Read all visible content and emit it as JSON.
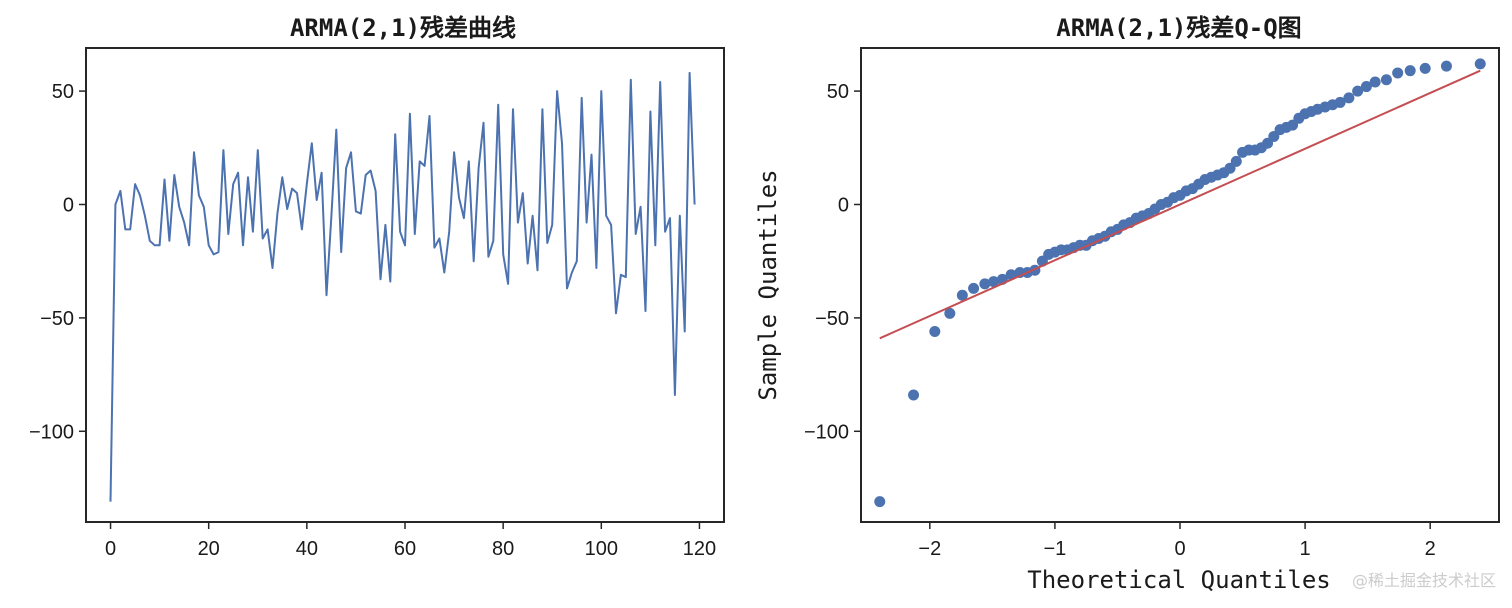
{
  "chart_data": [
    {
      "type": "line",
      "title": "ARMA(2,1)残差曲线",
      "xlabel": "",
      "ylabel": "",
      "xlim": [
        -5,
        125
      ],
      "ylim": [
        -140,
        69
      ],
      "xticks": [
        0,
        20,
        40,
        60,
        80,
        100,
        120
      ],
      "xtick_labels": [
        "0",
        "20",
        "40",
        "60",
        "80",
        "100",
        "120"
      ],
      "yticks": [
        50,
        0,
        -50,
        -100
      ],
      "ytick_labels": [
        "50",
        "0",
        "−50",
        "−100"
      ],
      "grid": false,
      "color": "#4c72b0",
      "series": [
        {
          "x": [
            0,
            1,
            2,
            3,
            4,
            5,
            6,
            7,
            8,
            9,
            10,
            11,
            12,
            13,
            14,
            15,
            16,
            17,
            18,
            19,
            20,
            21,
            22,
            23,
            24,
            25,
            26,
            27,
            28,
            29,
            30,
            31,
            32,
            33,
            34,
            35,
            36,
            37,
            38,
            39,
            40,
            41,
            42,
            43,
            44,
            45,
            46,
            47,
            48,
            49,
            50,
            51,
            52,
            53,
            54,
            55,
            56,
            57,
            58,
            59,
            60,
            61,
            62,
            63,
            64,
            65,
            66,
            67,
            68,
            69,
            70,
            71,
            72,
            73,
            74,
            75,
            76,
            77,
            78,
            79,
            80,
            81,
            82,
            83,
            84,
            85,
            86,
            87,
            88,
            89,
            90,
            91,
            92,
            93,
            94,
            95,
            96,
            97,
            98,
            99,
            100,
            101,
            102,
            103,
            104,
            105,
            106,
            107,
            108,
            109,
            110,
            111,
            112,
            113,
            114,
            115,
            116,
            117,
            118,
            119
          ],
          "y": [
            -131,
            0,
            6,
            -11,
            -11,
            9,
            4,
            -5,
            -16,
            -18,
            -18,
            11,
            -16,
            13,
            -1,
            -8,
            -18,
            23,
            4,
            -1,
            -18,
            -22,
            -21,
            24,
            -13,
            9,
            14,
            -18,
            12,
            -12,
            24,
            -15,
            -11,
            -28,
            -4,
            12,
            -2,
            7,
            5,
            -11,
            9,
            27,
            2,
            14,
            -40,
            -5,
            33,
            -21,
            16,
            23,
            -3,
            -4,
            13,
            15,
            6,
            -33,
            -9,
            -34,
            31,
            -12,
            -18,
            40,
            -13,
            19,
            17,
            39,
            -19,
            -15,
            -30,
            -12,
            23,
            3,
            -6,
            19,
            -25,
            16,
            36,
            -23,
            -16,
            44,
            -22,
            -35,
            42,
            -8,
            5,
            -26,
            -5,
            -29,
            42,
            -17,
            -9,
            50,
            27,
            -37,
            -30,
            -25,
            47,
            -8,
            22,
            -28,
            50,
            -5,
            -9,
            -48,
            -31,
            -32,
            55,
            -13,
            -1,
            -47,
            41,
            -18,
            54,
            -12,
            -6,
            -84,
            -5,
            -56,
            58,
            0
          ]
        }
      ]
    },
    {
      "type": "scatter",
      "title": "ARMA(2,1)残差Q-Q图",
      "xlabel": "Theoretical Quantiles",
      "ylabel": "Sample Quantiles",
      "xlim": [
        -2.55,
        2.55
      ],
      "ylim": [
        -140,
        69
      ],
      "xticks": [
        -2,
        -1,
        0,
        1,
        2
      ],
      "xtick_labels": [
        "−2",
        "−1",
        "0",
        "1",
        "2"
      ],
      "yticks": [
        50,
        0,
        -50,
        -100
      ],
      "ytick_labels": [
        "50",
        "0",
        "−50",
        "−100"
      ],
      "grid": false,
      "point_color": "#4c72b0",
      "line_color": "#c44e52",
      "reference_line": {
        "x": [
          -2.4,
          2.4
        ],
        "y": [
          -59,
          59
        ]
      },
      "points": {
        "x": [
          -2.4,
          -2.13,
          -1.96,
          -1.84,
          -1.74,
          -1.65,
          -1.56,
          -1.49,
          -1.42,
          -1.35,
          -1.28,
          -1.22,
          -1.16,
          -1.1,
          -1.05,
          -1.0,
          -0.95,
          -0.9,
          -0.85,
          -0.8,
          -0.75,
          -0.7,
          -0.65,
          -0.6,
          -0.55,
          -0.5,
          -0.45,
          -0.4,
          -0.35,
          -0.3,
          -0.25,
          -0.2,
          -0.15,
          -0.1,
          -0.05,
          0.0,
          0.05,
          0.1,
          0.15,
          0.2,
          0.25,
          0.3,
          0.35,
          0.4,
          0.45,
          0.5,
          0.55,
          0.6,
          0.65,
          0.7,
          0.75,
          0.8,
          0.85,
          0.9,
          0.95,
          1.0,
          1.05,
          1.1,
          1.16,
          1.22,
          1.28,
          1.35,
          1.42,
          1.49,
          1.56,
          1.65,
          1.74,
          1.84,
          1.96,
          2.13,
          2.4
        ],
        "y": [
          -131,
          -84,
          -56,
          -48,
          -40,
          -37,
          -35,
          -34,
          -33,
          -31,
          -30,
          -30,
          -29,
          -25,
          -22,
          -21,
          -20,
          -20,
          -19,
          -18,
          -18,
          -16,
          -15,
          -14,
          -12,
          -11,
          -9,
          -8,
          -6,
          -5,
          -4,
          -2,
          0,
          1,
          3,
          4,
          6,
          7,
          9,
          11,
          12,
          13,
          14,
          16,
          19,
          23,
          24,
          24,
          25,
          27,
          30,
          33,
          34,
          35,
          38,
          40,
          41,
          42,
          43,
          44,
          45,
          47,
          50,
          52,
          54,
          55,
          58,
          59,
          60,
          61,
          62
        ]
      }
    }
  ],
  "watermark": "@稀土掘金技术社区"
}
